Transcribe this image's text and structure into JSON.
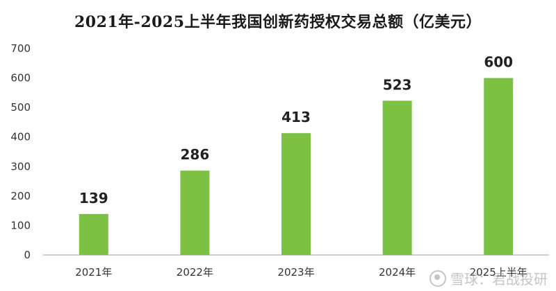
{
  "chart_data": {
    "type": "bar",
    "title": "2021年-2025上半年我国创新药授权交易总额（亿美元）",
    "categories": [
      "2021年",
      "2022年",
      "2023年",
      "2024年",
      "2025上半年"
    ],
    "values": [
      139,
      286,
      413,
      523,
      600
    ],
    "data_labels": [
      "139",
      "286",
      "413",
      "523",
      "600"
    ],
    "xlabel": "",
    "ylabel": "",
    "ylim": [
      0,
      700
    ],
    "yticks": [
      0,
      100,
      200,
      300,
      400,
      500,
      600,
      700
    ],
    "grid": false,
    "legend": "none",
    "bar_color": "#7cc142",
    "axis_color": "#bfbfbf"
  },
  "watermark": {
    "text": "雪球：君战投研",
    "icon": "snowball-logo-icon"
  }
}
